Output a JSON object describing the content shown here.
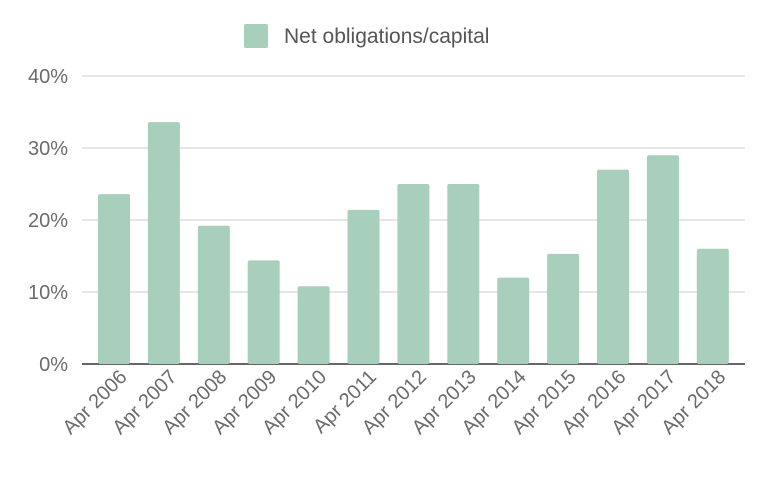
{
  "chart_data": {
    "type": "bar",
    "categories": [
      "Apr 2006",
      "Apr 2007",
      "Apr 2008",
      "Apr 2009",
      "Apr 2010",
      "Apr 2011",
      "Apr 2012",
      "Apr 2013",
      "Apr 2014",
      "Apr 2015",
      "Apr 2016",
      "Apr 2017",
      "Apr 2018"
    ],
    "series": [
      {
        "name": "Net obligations/capital",
        "color": "#a8cfbb",
        "values": [
          0.236,
          0.336,
          0.192,
          0.144,
          0.108,
          0.214,
          0.25,
          0.25,
          0.12,
          0.153,
          0.27,
          0.29,
          0.16
        ]
      }
    ],
    "yticks": [
      {
        "value": 0,
        "label": "0%"
      },
      {
        "value": 0.1,
        "label": "10%"
      },
      {
        "value": 0.2,
        "label": "20%"
      },
      {
        "value": 0.3,
        "label": "30%"
      },
      {
        "value": 0.4,
        "label": "40%"
      }
    ],
    "ylim": [
      0,
      0.4
    ],
    "grid": true,
    "legend_position": "top-center",
    "colors": {
      "gridline": "#cccccc",
      "baseline": "#333333",
      "text": "#6b6b6b",
      "legend_text": "#555555"
    }
  }
}
